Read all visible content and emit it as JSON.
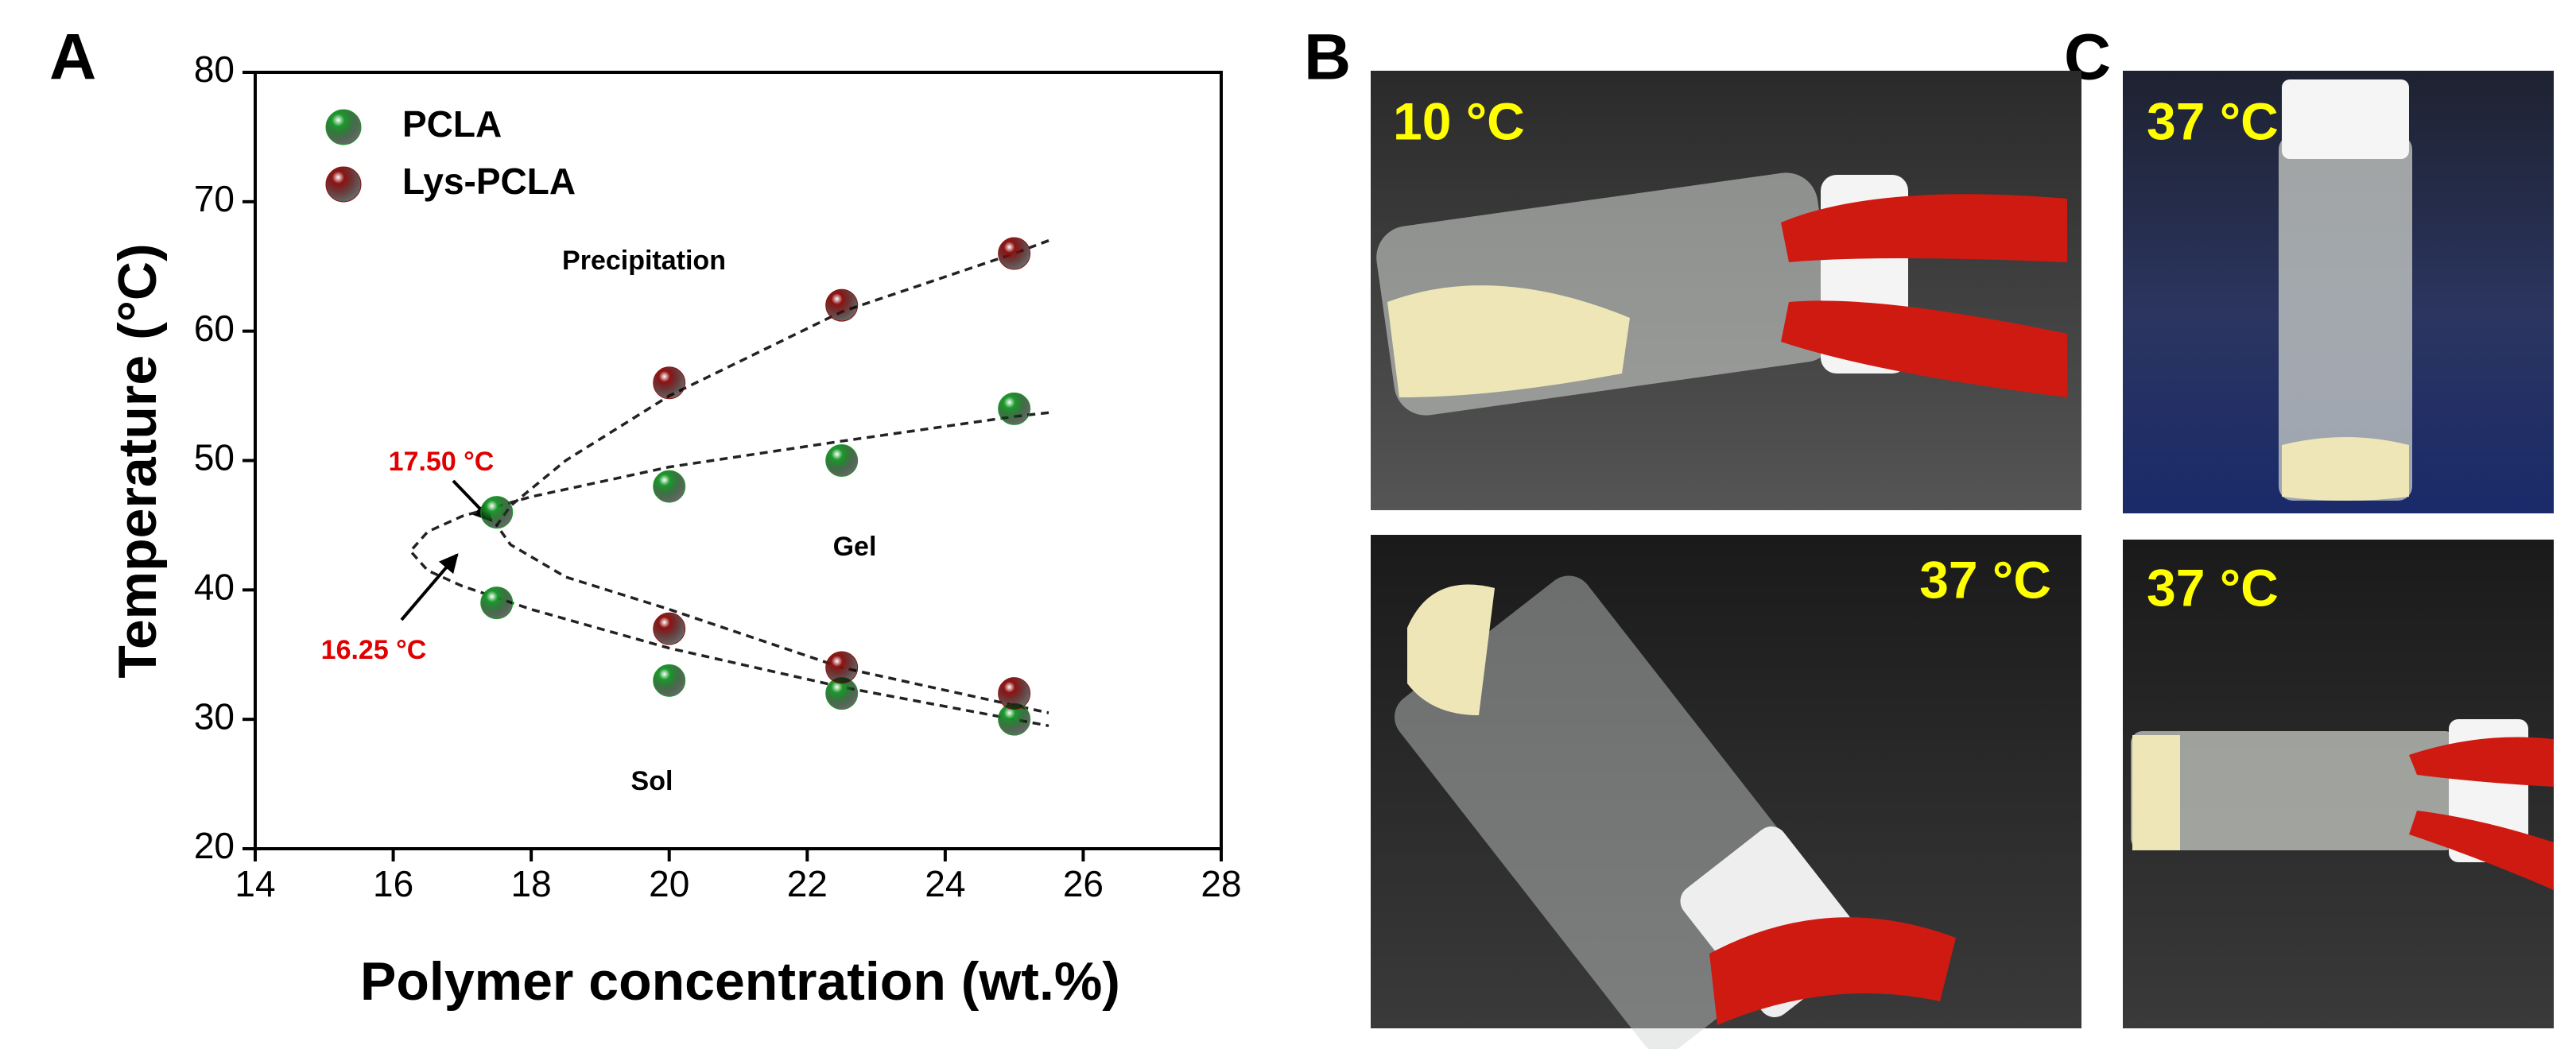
{
  "chart_data": {
    "type": "scatter",
    "x_label": "Polymer concentration (wt.%)",
    "y_label": "Temperature (°C)",
    "xlim": [
      14,
      28
    ],
    "xticks": [
      14,
      16,
      18,
      20,
      22,
      24,
      26,
      28
    ],
    "ylim": [
      20,
      80
    ],
    "yticks": [
      20,
      30,
      40,
      50,
      60,
      70,
      80
    ],
    "legend": "upper left",
    "series": [
      {
        "name": "PCLA",
        "color": "#1c9a2c",
        "x": [
          17.5,
          17.5,
          20,
          20,
          22.5,
          22.5,
          25,
          25
        ],
        "values": [
          46,
          39,
          48,
          33,
          50,
          32,
          54,
          30
        ]
      },
      {
        "name": "Lys-PCLA",
        "color": "#8e1212",
        "x": [
          20,
          20,
          22.5,
          22.5,
          25,
          25
        ],
        "values": [
          56,
          37,
          62,
          34,
          66,
          32
        ]
      }
    ],
    "fit_lines": [
      {
        "x": [
          25.5,
          25,
          22.5,
          20,
          18,
          17,
          16.5,
          16.25,
          16.5,
          17,
          18,
          20,
          22.5,
          25.5
        ],
        "values": [
          53.7,
          53.4,
          51.5,
          49.5,
          47.2,
          45.7,
          44.5,
          43,
          41.5,
          40.3,
          38.5,
          35.5,
          32.5,
          29.5
        ]
      },
      {
        "x": [
          25.5,
          25,
          22.5,
          20,
          18.5,
          17.7,
          17.5,
          17.7,
          18.5,
          20,
          22.5,
          25.5
        ],
        "values": [
          67,
          66,
          61.5,
          55,
          50,
          46.5,
          45,
          43.5,
          41,
          38.5,
          34,
          30.5
        ]
      }
    ],
    "annotations": [
      "Precipitation",
      "Gel",
      "Sol",
      "17.50 °C",
      "16.25 °C"
    ]
  },
  "panel_labels": [
    "A",
    "B",
    "C"
  ],
  "photos": [
    {
      "label": "10 °C"
    },
    {
      "label": "37 °C"
    },
    {
      "label": "37 °C"
    },
    {
      "label": "37 °C"
    }
  ]
}
